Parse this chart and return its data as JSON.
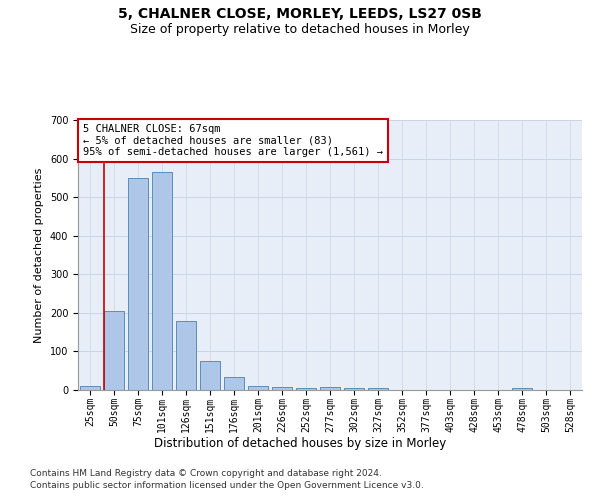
{
  "title_line1": "5, CHALNER CLOSE, MORLEY, LEEDS, LS27 0SB",
  "title_line2": "Size of property relative to detached houses in Morley",
  "xlabel": "Distribution of detached houses by size in Morley",
  "ylabel": "Number of detached properties",
  "categories": [
    "25sqm",
    "50sqm",
    "75sqm",
    "101sqm",
    "126sqm",
    "151sqm",
    "176sqm",
    "201sqm",
    "226sqm",
    "252sqm",
    "277sqm",
    "302sqm",
    "327sqm",
    "352sqm",
    "377sqm",
    "403sqm",
    "428sqm",
    "453sqm",
    "478sqm",
    "503sqm",
    "528sqm"
  ],
  "values": [
    10,
    205,
    550,
    565,
    180,
    75,
    35,
    10,
    8,
    5,
    8,
    5,
    4,
    0,
    0,
    0,
    0,
    0,
    5,
    0,
    0
  ],
  "bar_color": "#aec6e8",
  "bar_edge_color": "#5b8db8",
  "highlight_color": "#cc0000",
  "annotation_text": "5 CHALNER CLOSE: 67sqm\n← 5% of detached houses are smaller (83)\n95% of semi-detached houses are larger (1,561) →",
  "annotation_box_color": "#ffffff",
  "annotation_box_edge": "#cc0000",
  "ylim": [
    0,
    700
  ],
  "yticks": [
    0,
    100,
    200,
    300,
    400,
    500,
    600,
    700
  ],
  "grid_color": "#c8d4e8",
  "bg_color": "#e8eef8",
  "footer_line1": "Contains HM Land Registry data © Crown copyright and database right 2024.",
  "footer_line2": "Contains public sector information licensed under the Open Government Licence v3.0.",
  "title_fontsize": 10,
  "subtitle_fontsize": 9,
  "ylabel_fontsize": 8,
  "xlabel_fontsize": 8.5,
  "tick_fontsize": 7,
  "annotation_fontsize": 7.5,
  "footer_fontsize": 6.5
}
